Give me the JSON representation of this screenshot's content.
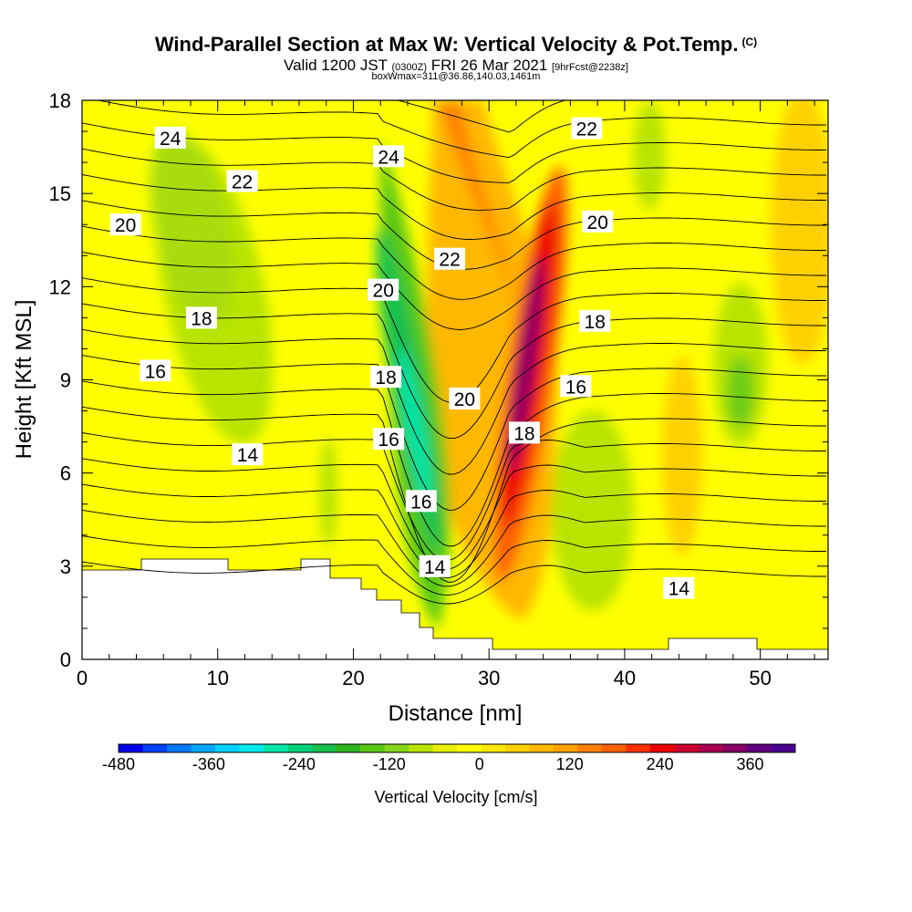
{
  "title": "Wind-Parallel Section at Max W: Vertical Velocity & Pot.Temp.",
  "copyright": "(C)",
  "subtitle_main1": "Valid 1200 JST",
  "subtitle_z": "(0300Z)",
  "subtitle_main2": "FRI 26 Mar 2021",
  "subtitle_fcst": "[9hrFcst@2238z]",
  "subtitle2": "boxWmax=311@36.86,140.03,1461m",
  "chart_data": {
    "type": "heatmap",
    "xlabel": "Distance [nm]",
    "ylabel": "Height [Kft MSL]",
    "xlim": [
      0,
      55
    ],
    "ylim": [
      0,
      18
    ],
    "x_ticks": [
      0,
      10,
      20,
      30,
      40,
      50
    ],
    "y_ticks": [
      0,
      3,
      6,
      9,
      12,
      15,
      18
    ],
    "colorbar": {
      "label": "Vertical Velocity [cm/s]",
      "tick_labels": [
        -480,
        -360,
        -240,
        -120,
        0,
        120,
        240,
        360
      ],
      "min": -480,
      "max": 420,
      "step": 30,
      "colors": [
        "#0000e8",
        "#0040ff",
        "#0078ff",
        "#00a8ff",
        "#00d0ff",
        "#00ecec",
        "#00e6a8",
        "#00d07c",
        "#18c050",
        "#2eb41e",
        "#58c814",
        "#88d61a",
        "#b8e400",
        "#e8f000",
        "#ffff00",
        "#ffe800",
        "#ffd000",
        "#ffb800",
        "#ffa000",
        "#ff8000",
        "#ff6000",
        "#ff3000",
        "#ee0000",
        "#cc0030",
        "#aa0050",
        "#880064",
        "#620080",
        "#4a0090"
      ]
    },
    "contours": {
      "variable": "Potential temperature",
      "labels": [
        {
          "x": 6.5,
          "y": 16.8,
          "v": "24"
        },
        {
          "x": 11.8,
          "y": 15.4,
          "v": "22"
        },
        {
          "x": 3.2,
          "y": 14.0,
          "v": "20"
        },
        {
          "x": 8.8,
          "y": 11.0,
          "v": "18"
        },
        {
          "x": 5.4,
          "y": 9.3,
          "v": "16"
        },
        {
          "x": 12.2,
          "y": 6.6,
          "v": "14"
        },
        {
          "x": 22.6,
          "y": 16.2,
          "v": "24"
        },
        {
          "x": 37.2,
          "y": 17.1,
          "v": "22"
        },
        {
          "x": 27.1,
          "y": 12.9,
          "v": "22"
        },
        {
          "x": 22.2,
          "y": 11.9,
          "v": "20"
        },
        {
          "x": 38.0,
          "y": 14.1,
          "v": "20"
        },
        {
          "x": 28.2,
          "y": 8.4,
          "v": "20"
        },
        {
          "x": 22.4,
          "y": 9.1,
          "v": "18"
        },
        {
          "x": 37.8,
          "y": 10.9,
          "v": "18"
        },
        {
          "x": 32.6,
          "y": 7.3,
          "v": "18"
        },
        {
          "x": 22.6,
          "y": 7.1,
          "v": "16"
        },
        {
          "x": 25.0,
          "y": 5.1,
          "v": "16"
        },
        {
          "x": 36.4,
          "y": 8.8,
          "v": "16"
        },
        {
          "x": 26.0,
          "y": 3.0,
          "v": "14"
        },
        {
          "x": 44.0,
          "y": 2.3,
          "v": "14"
        }
      ]
    }
  }
}
